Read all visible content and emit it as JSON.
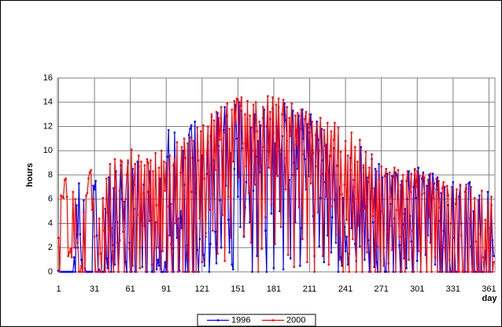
{
  "chart_data": {
    "type": "line",
    "x_label": "day",
    "y_label": "hours",
    "x": [
      1,
      2,
      3,
      4,
      5,
      6,
      7,
      8,
      9,
      10,
      11,
      12,
      13,
      14,
      15,
      16,
      17,
      18,
      19,
      20,
      21,
      22,
      23,
      24,
      25,
      26,
      27,
      28,
      29,
      30,
      31,
      32,
      33,
      34,
      35,
      36,
      37,
      38,
      39,
      40,
      41,
      42,
      43,
      44,
      45,
      46,
      47,
      48,
      49,
      50,
      51,
      52,
      53,
      54,
      55,
      56,
      57,
      58,
      59,
      60,
      61,
      62,
      63,
      64,
      65,
      66,
      67,
      68,
      69,
      70,
      71,
      72,
      73,
      74,
      75,
      76,
      77,
      78,
      79,
      80,
      81,
      82,
      83,
      84,
      85,
      86,
      87,
      88,
      89,
      90,
      91,
      92,
      93,
      94,
      95,
      96,
      97,
      98,
      99,
      100,
      101,
      102,
      103,
      104,
      105,
      106,
      107,
      108,
      109,
      110,
      111,
      112,
      113,
      114,
      115,
      116,
      117,
      118,
      119,
      120,
      121,
      122,
      123,
      124,
      125,
      126,
      127,
      128,
      129,
      130,
      131,
      132,
      133,
      134,
      135,
      136,
      137,
      138,
      139,
      140,
      141,
      142,
      143,
      144,
      145,
      146,
      147,
      148,
      149,
      150,
      151,
      152,
      153,
      154,
      155,
      156,
      157,
      158,
      159,
      160,
      161,
      162,
      163,
      164,
      165,
      166,
      167,
      168,
      169,
      170,
      171,
      172,
      173,
      174,
      175,
      176,
      177,
      178,
      179,
      180,
      181,
      182,
      183,
      184,
      185,
      186,
      187,
      188,
      189,
      190,
      191,
      192,
      193,
      194,
      195,
      196,
      197,
      198,
      199,
      200,
      201,
      202,
      203,
      204,
      205,
      206,
      207,
      208,
      209,
      210,
      211,
      212,
      213,
      214,
      215,
      216,
      217,
      218,
      219,
      220,
      221,
      222,
      223,
      224,
      225,
      226,
      227,
      228,
      229,
      230,
      231,
      232,
      233,
      234,
      235,
      236,
      237,
      238,
      239,
      240,
      241,
      242,
      243,
      244,
      245,
      246,
      247,
      248,
      249,
      250,
      251,
      252,
      253,
      254,
      255,
      256,
      257,
      258,
      259,
      260,
      261,
      262,
      263,
      264,
      265,
      266,
      267,
      268,
      269,
      270,
      271,
      272,
      273,
      274,
      275,
      276,
      277,
      278,
      279,
      280,
      281,
      282,
      283,
      284,
      285,
      286,
      287,
      288,
      289,
      290,
      291,
      292,
      293,
      294,
      295,
      296,
      297,
      298,
      299,
      300,
      301,
      302,
      303,
      304,
      305,
      306,
      307,
      308,
      309,
      310,
      311,
      312,
      313,
      314,
      315,
      316,
      317,
      318,
      319,
      320,
      321,
      322,
      323,
      324,
      325,
      326,
      327,
      328,
      329,
      330,
      331,
      332,
      333,
      334,
      335,
      336,
      337,
      338,
      339,
      340,
      341,
      342,
      343,
      344,
      345,
      346,
      347,
      348,
      349,
      350,
      351,
      352,
      353,
      354,
      355,
      356,
      357,
      358,
      359,
      360,
      361,
      362,
      363,
      364,
      365
    ],
    "series": [
      {
        "name": "1996",
        "color": "#0000ff",
        "values": [
          0.1,
          0,
          0,
          0,
          0,
          0,
          0,
          0,
          0,
          0,
          0,
          0,
          0,
          1.2,
          0,
          5.5,
          2.0,
          7.3,
          3.1,
          1.0,
          0,
          5.9,
          0.3,
          0,
          0,
          0,
          0,
          0,
          0,
          7.1,
          6.8,
          7.5,
          3.0,
          0,
          0.2,
          0,
          0,
          0,
          0,
          5.2,
          1.1,
          0.3,
          7.8,
          4.5,
          0,
          2.2,
          6.9,
          0.6,
          8.3,
          4.1,
          0,
          2.6,
          8.8,
          6.0,
          3.3,
          5.8,
          0.8,
          0,
          9.0,
          2.4,
          0,
          0,
          8.5,
          5.2,
          0,
          0,
          9.1,
          8.7,
          2.0,
          6.4,
          0.4,
          7.2,
          3.8,
          0,
          0,
          6.6,
          8.3,
          4.9,
          0,
          0,
          3.5,
          4.1,
          0.2,
          1.0,
          0.5,
          7.7,
          0,
          0,
          0,
          0.8,
          0,
          9.5,
          11.7,
          3.0,
          5.6,
          1.9,
          0,
          11.5,
          6.3,
          2.8,
          4.4,
          0.1,
          5.0,
          3.6,
          10.0,
          7.2,
          0,
          2.2,
          0,
          11.3,
          11.8,
          12.1,
          9.4,
          0,
          12.4,
          6.5,
          1.8,
          0,
          2.7,
          7.0,
          9.6,
          1.4,
          0.5,
          3.2,
          8.1,
          10.7,
          0,
          2.3,
          12.8,
          6.4,
          9.2,
          3.3,
          0.7,
          13.1,
          10.4,
          5.9,
          2.0,
          8.8,
          11.7,
          13.6,
          7.1,
          12.9,
          4.3,
          1.6,
          9.8,
          0.6,
          0.2,
          8.5,
          13.8,
          11.0,
          6.2,
          14.0,
          3.7,
          13.3,
          10.2,
          2.9,
          5.3,
          7.4,
          12.6,
          8.0,
          4.1,
          11.9,
          0,
          6.7,
          13.0,
          9.5,
          1.3,
          10.8,
          8.2,
          12.1,
          6.0,
          12.7,
          13.4,
          3.4,
          0,
          12.8,
          9.9,
          12.6,
          4.8,
          13.5,
          0.3,
          10.6,
          8.1,
          11.4,
          13.6,
          5.0,
          9.7,
          11.2,
          0.2,
          13.9,
          12.5,
          10.8,
          6.3,
          7.6,
          1.1,
          12.0,
          13.3,
          9.0,
          4.1,
          11.7,
          8.5,
          12.9,
          0.5,
          3.6,
          13.4,
          11.0,
          9.3,
          6.8,
          12.2,
          7.9,
          11.5,
          13.0,
          10.1,
          4.6,
          1.3,
          8.7,
          12.4,
          10.9,
          2.1,
          6.1,
          11.8,
          9.2,
          0.8,
          7.4,
          10.5,
          3.0,
          8.3,
          9.6,
          1.6,
          4.5,
          10.2,
          5.9,
          2.4,
          8.8,
          0,
          7.0,
          1.2,
          0.5,
          6.1,
          3.7,
          1.7,
          2.9,
          0.6,
          1.5,
          9.4,
          3.6,
          5.8,
          7.6,
          2.3,
          0.9,
          4.0,
          6.2,
          2.1,
          10.3,
          3.3,
          8.6,
          1.0,
          5.4,
          7.8,
          2.6,
          0,
          5.7,
          9.3,
          4.1,
          0.4,
          8.5,
          0.8,
          0,
          8.9,
          3.5,
          6.3,
          7.8,
          2.0,
          0,
          0,
          8.1,
          0.7,
          3.8,
          5.6,
          7.9,
          0,
          4.4,
          8.2,
          8.0,
          6.7,
          2.2,
          0,
          7.5,
          3.9,
          1.1,
          5.2,
          0.3,
          6.0,
          8.3,
          4.6,
          2.5,
          0,
          7.0,
          8.4,
          6.1,
          0.9,
          8.6,
          4.0,
          0,
          7.7,
          8.2,
          6.5,
          1.4,
          7.1,
          3.0,
          8.0,
          2.4,
          5.9,
          8.1,
          7.3,
          0.6,
          6.8,
          7.8,
          4.2,
          0,
          6.5,
          0,
          3.4,
          7.0,
          0,
          0,
          5.5,
          1.0,
          0,
          0,
          7.4,
          2.8,
          0,
          0,
          0,
          6.2,
          7.1,
          4.0,
          0,
          0,
          0,
          6.9,
          0,
          7.3,
          7.4,
          2.1,
          0,
          5.0,
          0,
          0,
          0,
          0,
          6.3,
          3.1,
          0,
          0,
          0,
          1.8,
          0,
          6.6,
          0,
          0,
          5.5,
          2.6,
          1.3
        ]
      },
      {
        "name": "2000",
        "color": "#ff0000",
        "values": [
          2.8,
          0,
          6.3,
          6.2,
          6.1,
          7.6,
          7.7,
          6.2,
          1.3,
          1.6,
          1.9,
          1.2,
          6.6,
          2.0,
          6.0,
          3.3,
          2.4,
          0,
          0,
          0.5,
          0,
          4.9,
          0,
          6.3,
          6.5,
          7.7,
          8.2,
          8.4,
          5.1,
          6.0,
          2.9,
          0,
          0,
          0,
          4.4,
          1.5,
          0,
          6.1,
          3.4,
          0,
          7.7,
          4.9,
          0,
          8.9,
          3.6,
          1.7,
          0,
          9.3,
          7.0,
          2.4,
          0,
          6.7,
          9.2,
          9.1,
          4.3,
          0,
          6.0,
          8.0,
          9.2,
          1.9,
          0,
          10.1,
          0.5,
          7.2,
          8.9,
          0,
          4.7,
          9.6,
          0.3,
          9.1,
          2.2,
          6.5,
          8.8,
          0,
          9.3,
          9.0,
          4.2,
          9.2,
          0.6,
          8.3,
          0,
          9.8,
          5.5,
          2.0,
          8.6,
          0.2,
          10.0,
          1.7,
          9.1,
          6.7,
          9.0,
          0,
          5.4,
          9.6,
          2.3,
          0,
          8.8,
          9.3,
          4.0,
          10.7,
          0,
          3.1,
          8.2,
          10.3,
          0,
          11.0,
          9.4,
          1.2,
          10.6,
          0,
          11.1,
          6.6,
          0,
          10.8,
          7.5,
          0,
          11.9,
          9.2,
          4.4,
          11.6,
          0.8,
          12.1,
          7.7,
          2.9,
          9.8,
          12.0,
          5.1,
          11.2,
          13.0,
          3.4,
          12.5,
          8.4,
          13.2,
          1.5,
          12.7,
          10.9,
          13.6,
          4.7,
          11.5,
          0.9,
          12.8,
          13.9,
          6.2,
          11.8,
          2.8,
          13.4,
          9.1,
          14.1,
          12.3,
          14.3,
          14.2,
          7.8,
          13.7,
          14.4,
          10.6,
          3.0,
          13.0,
          8.7,
          14.1,
          6.5,
          12.9,
          2.4,
          10.0,
          13.8,
          7.2,
          14.0,
          11.6,
          0,
          12.4,
          9.0,
          1.9,
          13.6,
          10.3,
          4.5,
          12.0,
          14.5,
          8.6,
          13.2,
          5.6,
          14.4,
          11.5,
          2.3,
          13.8,
          7.9,
          14.3,
          10.1,
          3.7,
          13.0,
          14.2,
          9.4,
          6.8,
          13.6,
          1.4,
          12.7,
          11.2,
          13.9,
          8.0,
          0.4,
          12.9,
          10.5,
          13.1,
          5.3,
          11.8,
          13.4,
          2.7,
          9.7,
          12.6,
          13.2,
          0.8,
          11.9,
          13.0,
          7.3,
          12.4,
          9.8,
          0,
          11.3,
          12.2,
          4.9,
          10.0,
          12.7,
          8.1,
          1.3,
          11.7,
          10.4,
          6.2,
          12.3,
          0.6,
          9.5,
          11.6,
          5.4,
          10.9,
          12.3,
          3.1,
          8.7,
          11.9,
          1.0,
          9.9,
          6.4,
          0,
          7.2,
          10.8,
          4.3,
          9.6,
          0,
          8.4,
          11.5,
          2.7,
          7.0,
          10.3,
          0,
          9.1,
          3.8,
          10.9,
          6.0,
          0,
          8.8,
          5.2,
          9.9,
          1.6,
          7.4,
          8.6,
          0,
          9.7,
          4.6,
          6.9,
          0,
          8.3,
          2.1,
          7.6,
          0,
          8.7,
          5.0,
          0.5,
          7.9,
          8.5,
          3.3,
          0,
          8.2,
          6.2,
          1.8,
          7.8,
          8.6,
          0,
          5.1,
          8.4,
          2.9,
          7.2,
          0,
          8.0,
          4.8,
          0,
          7.5,
          8.3,
          1.0,
          6.6,
          8.1,
          3.4,
          0,
          8.5,
          7.0,
          8.3,
          1.7,
          7.9,
          0,
          6.4,
          8.0,
          7.8,
          2.6,
          0,
          7.6,
          4.5,
          8.1,
          0,
          7.3,
          6.1,
          1.2,
          7.7,
          0,
          7.5,
          5.3,
          0,
          6.9,
          7.4,
          2.0,
          0,
          7.1,
          6.3,
          0,
          4.0,
          7.0,
          0,
          0,
          5.6,
          6.8,
          0,
          0,
          7.2,
          3.0,
          0,
          0,
          6.6,
          7.2,
          0,
          0,
          4.4,
          7.0,
          0,
          0,
          6.1,
          2.5,
          0,
          5.9,
          0,
          0,
          6.7,
          1.2,
          0,
          4.3,
          0,
          5.7,
          0,
          3.6,
          6.2,
          0,
          0.8
        ]
      }
    ],
    "xlim": [
      0,
      366
    ],
    "xticks": [
      1,
      31,
      61,
      91,
      121,
      151,
      181,
      211,
      241,
      271,
      301,
      331,
      361
    ],
    "ylim": [
      0,
      16
    ],
    "yticks": [
      0,
      2,
      4,
      6,
      8,
      10,
      12,
      14,
      16
    ],
    "grid": true,
    "legend": "bottom"
  }
}
